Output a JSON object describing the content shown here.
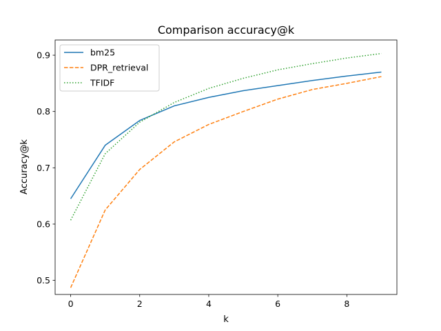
{
  "chart_data": {
    "type": "line",
    "title": "Comparison accuracy@k",
    "xlabel": "k",
    "ylabel": "Accuracy@k",
    "x": [
      0,
      1,
      2,
      3,
      4,
      5,
      6,
      7,
      8,
      9
    ],
    "xlim": [
      -0.45,
      9.45
    ],
    "ylim": [
      0.475,
      0.927
    ],
    "xticks": [
      0,
      2,
      4,
      6,
      8
    ],
    "yticks": [
      0.5,
      0.6,
      0.7,
      0.8,
      0.9
    ],
    "grid": false,
    "legend_position": "upper-left",
    "series": [
      {
        "name": "bm25",
        "color": "#1f77b4",
        "style": "solid",
        "values": [
          0.645,
          0.74,
          0.784,
          0.81,
          0.825,
          0.837,
          0.846,
          0.855,
          0.863,
          0.87
        ]
      },
      {
        "name": "DPR_retrieval",
        "color": "#ff7f0e",
        "style": "dashed",
        "values": [
          0.487,
          0.625,
          0.697,
          0.746,
          0.777,
          0.8,
          0.822,
          0.839,
          0.85,
          0.862
        ]
      },
      {
        "name": "TFIDF",
        "color": "#2ca02c",
        "style": "dotted",
        "values": [
          0.607,
          0.725,
          0.781,
          0.816,
          0.841,
          0.859,
          0.874,
          0.885,
          0.895,
          0.903
        ]
      }
    ]
  }
}
